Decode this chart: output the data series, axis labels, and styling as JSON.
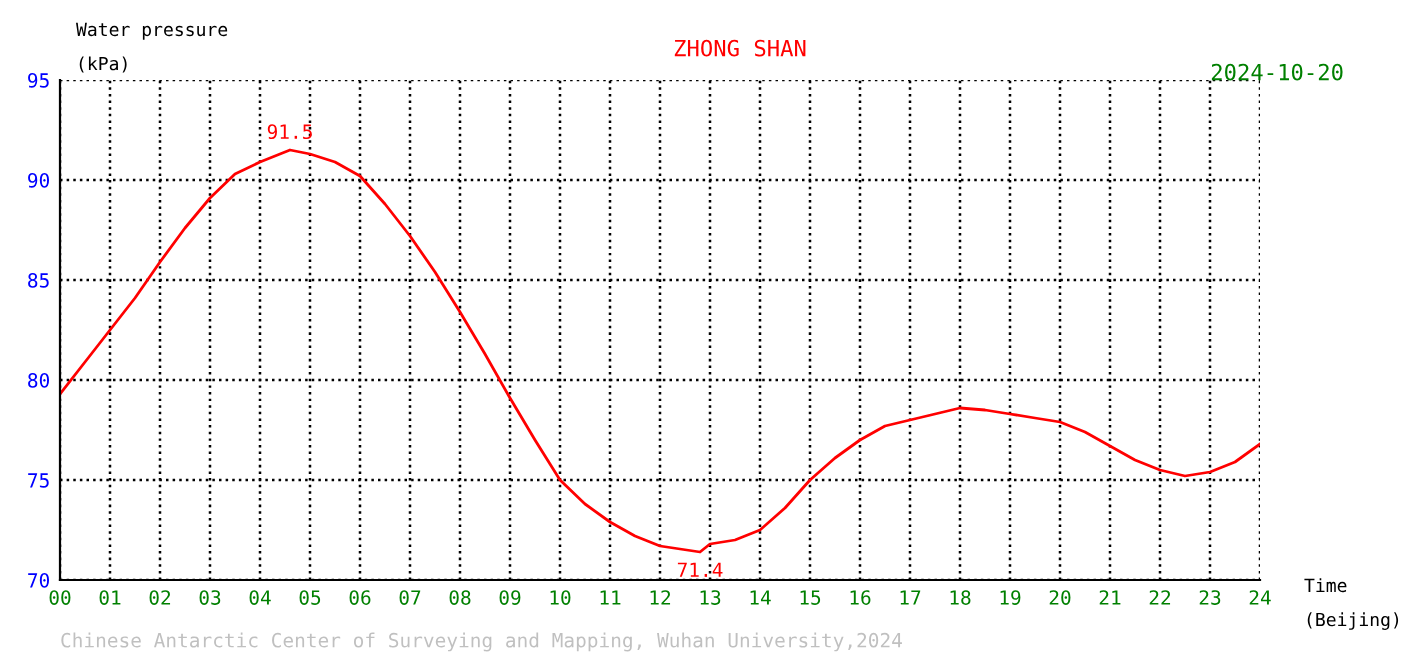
{
  "chart_data": {
    "type": "line",
    "title": "ZHONG SHAN",
    "subtitle": "2024-10-20",
    "xlabel": "Time\n(Beijing)",
    "ylabel": "Water pressure\n(kPa)",
    "series": [
      {
        "color": "#ff0000",
        "x": [
          0,
          0.5,
          1,
          1.5,
          2,
          2.5,
          3,
          3.5,
          4,
          4.6,
          5,
          5.5,
          6,
          6.5,
          7,
          7.5,
          8,
          8.5,
          9,
          9.5,
          10,
          10.5,
          11,
          11.5,
          12,
          12.8,
          13,
          13.5,
          14,
          14.5,
          15,
          15.5,
          16,
          16.5,
          17,
          17.5,
          18,
          18.5,
          19,
          19.5,
          20,
          20.5,
          21,
          21.5,
          22,
          22.5,
          23,
          23.5,
          24
        ],
        "values": [
          79.3,
          80.9,
          82.5,
          84.1,
          85.9,
          87.6,
          89.1,
          90.3,
          90.9,
          91.5,
          91.3,
          90.9,
          90.2,
          88.8,
          87.2,
          85.4,
          83.4,
          81.3,
          79.1,
          77.0,
          75.0,
          73.8,
          72.9,
          72.2,
          71.7,
          71.4,
          71.8,
          72.0,
          72.5,
          73.6,
          75.0,
          76.1,
          77.0,
          77.7,
          78.0,
          78.3,
          78.6,
          78.5,
          78.3,
          78.1,
          77.9,
          77.4,
          76.7,
          76.0,
          75.5,
          75.2,
          75.4,
          75.9,
          76.8
        ]
      }
    ],
    "annotations": [
      {
        "text": "91.5",
        "x": 4.6,
        "y": 91.5
      },
      {
        "text": "71.4",
        "x": 12.8,
        "y": 71.4
      },
      "Chinese Antarctic Center of Surveying and Mapping, Wuhan University,2024"
    ],
    "xlim": [
      0,
      24
    ],
    "ylim": [
      70,
      95
    ],
    "xticks": [
      {
        "value": 0,
        "label": "00"
      },
      {
        "value": 1,
        "label": "01"
      },
      {
        "value": 2,
        "label": "02"
      },
      {
        "value": 3,
        "label": "03"
      },
      {
        "value": 4,
        "label": "04"
      },
      {
        "value": 5,
        "label": "05"
      },
      {
        "value": 6,
        "label": "06"
      },
      {
        "value": 7,
        "label": "07"
      },
      {
        "value": 8,
        "label": "08"
      },
      {
        "value": 9,
        "label": "09"
      },
      {
        "value": 10,
        "label": "10"
      },
      {
        "value": 11,
        "label": "11"
      },
      {
        "value": 12,
        "label": "12"
      },
      {
        "value": 13,
        "label": "13"
      },
      {
        "value": 14,
        "label": "14"
      },
      {
        "value": 15,
        "label": "15"
      },
      {
        "value": 16,
        "label": "16"
      },
      {
        "value": 17,
        "label": "17"
      },
      {
        "value": 18,
        "label": "18"
      },
      {
        "value": 19,
        "label": "19"
      },
      {
        "value": 20,
        "label": "20"
      },
      {
        "value": 21,
        "label": "21"
      },
      {
        "value": 22,
        "label": "22"
      },
      {
        "value": 23,
        "label": "23"
      },
      {
        "value": 24,
        "label": "24"
      }
    ],
    "yticks": [
      70,
      75,
      80,
      85,
      90,
      95
    ],
    "grid": true,
    "marker": "none",
    "line_style": "solid"
  }
}
